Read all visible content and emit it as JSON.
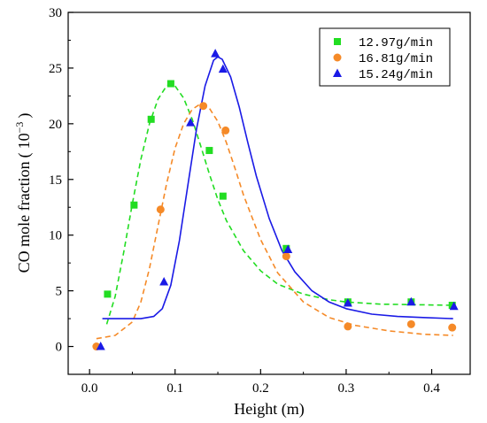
{
  "chart_data": {
    "type": "scatter",
    "xlabel": "Height (m)",
    "ylabel_main": "CO mole fraction",
    "ylabel_unit_base": "10",
    "ylabel_unit_exp": "−3",
    "xlim": [
      -0.025,
      0.445
    ],
    "ylim": [
      -2.5,
      30
    ],
    "xticks": [
      0.0,
      0.1,
      0.2,
      0.3,
      0.4
    ],
    "xtick_labels": [
      "0.0",
      "0.1",
      "0.2",
      "0.3",
      "0.4"
    ],
    "yticks": [
      0,
      5,
      10,
      15,
      20,
      25,
      30
    ],
    "ytick_labels": [
      "0",
      "5",
      "10",
      "15",
      "20",
      "25",
      "30"
    ],
    "legend_position": "top-right",
    "series": [
      {
        "name": "12.97g/min",
        "color": "#22dd22",
        "marker": "square",
        "line_style": "dashed",
        "points": [
          [
            0.021,
            4.7
          ],
          [
            0.052,
            12.7
          ],
          [
            0.072,
            20.4
          ],
          [
            0.095,
            23.6
          ],
          [
            0.14,
            17.6
          ],
          [
            0.156,
            13.5
          ],
          [
            0.23,
            8.8
          ],
          [
            0.302,
            4.0
          ],
          [
            0.376,
            4.0
          ],
          [
            0.424,
            3.7
          ]
        ],
        "fit": [
          [
            0.02,
            2.0
          ],
          [
            0.03,
            4.5
          ],
          [
            0.04,
            8.5
          ],
          [
            0.05,
            12.8
          ],
          [
            0.06,
            16.8
          ],
          [
            0.07,
            20.0
          ],
          [
            0.08,
            22.2
          ],
          [
            0.09,
            23.4
          ],
          [
            0.095,
            23.6
          ],
          [
            0.1,
            23.4
          ],
          [
            0.11,
            22.3
          ],
          [
            0.12,
            20.4
          ],
          [
            0.13,
            18.0
          ],
          [
            0.14,
            15.5
          ],
          [
            0.15,
            13.2
          ],
          [
            0.16,
            11.3
          ],
          [
            0.18,
            8.6
          ],
          [
            0.2,
            6.8
          ],
          [
            0.22,
            5.6
          ],
          [
            0.25,
            4.7
          ],
          [
            0.28,
            4.2
          ],
          [
            0.3,
            4.0
          ],
          [
            0.34,
            3.8
          ],
          [
            0.38,
            3.75
          ],
          [
            0.425,
            3.7
          ]
        ]
      },
      {
        "name": "16.81g/min",
        "color": "#f58a28",
        "marker": "circle",
        "line_style": "dashed",
        "points": [
          [
            0.008,
            0.0
          ],
          [
            0.083,
            12.3
          ],
          [
            0.133,
            21.6
          ],
          [
            0.159,
            19.4
          ],
          [
            0.23,
            8.1
          ],
          [
            0.302,
            1.8
          ],
          [
            0.376,
            2.0
          ],
          [
            0.424,
            1.7
          ]
        ],
        "fit": [
          [
            0.008,
            0.7
          ],
          [
            0.03,
            1.0
          ],
          [
            0.05,
            2.2
          ],
          [
            0.06,
            4.0
          ],
          [
            0.07,
            7.0
          ],
          [
            0.08,
            10.8
          ],
          [
            0.09,
            14.6
          ],
          [
            0.1,
            17.8
          ],
          [
            0.11,
            20.0
          ],
          [
            0.12,
            21.3
          ],
          [
            0.13,
            21.8
          ],
          [
            0.14,
            21.4
          ],
          [
            0.15,
            20.2
          ],
          [
            0.16,
            18.3
          ],
          [
            0.17,
            16.0
          ],
          [
            0.18,
            13.6
          ],
          [
            0.2,
            9.6
          ],
          [
            0.22,
            6.6
          ],
          [
            0.25,
            4.0
          ],
          [
            0.28,
            2.6
          ],
          [
            0.31,
            1.9
          ],
          [
            0.35,
            1.4
          ],
          [
            0.39,
            1.1
          ],
          [
            0.425,
            1.0
          ]
        ]
      },
      {
        "name": "15.24g/min",
        "color": "#1a1ae6",
        "marker": "triangle",
        "line_style": "solid",
        "points": [
          [
            0.013,
            0.0
          ],
          [
            0.087,
            5.8
          ],
          [
            0.118,
            20.1
          ],
          [
            0.147,
            26.3
          ],
          [
            0.156,
            24.9
          ],
          [
            0.232,
            8.7
          ],
          [
            0.302,
            3.9
          ],
          [
            0.376,
            4.0
          ],
          [
            0.426,
            3.6
          ]
        ],
        "fit": [
          [
            0.015,
            2.5
          ],
          [
            0.06,
            2.5
          ],
          [
            0.075,
            2.7
          ],
          [
            0.085,
            3.4
          ],
          [
            0.095,
            5.5
          ],
          [
            0.105,
            9.5
          ],
          [
            0.115,
            14.5
          ],
          [
            0.125,
            19.5
          ],
          [
            0.135,
            23.4
          ],
          [
            0.145,
            25.7
          ],
          [
            0.15,
            26.0
          ],
          [
            0.155,
            25.8
          ],
          [
            0.165,
            24.2
          ],
          [
            0.175,
            21.5
          ],
          [
            0.185,
            18.3
          ],
          [
            0.195,
            15.3
          ],
          [
            0.21,
            11.5
          ],
          [
            0.225,
            8.6
          ],
          [
            0.24,
            6.7
          ],
          [
            0.26,
            5.0
          ],
          [
            0.28,
            4.0
          ],
          [
            0.3,
            3.4
          ],
          [
            0.33,
            2.9
          ],
          [
            0.36,
            2.7
          ],
          [
            0.39,
            2.6
          ],
          [
            0.425,
            2.5
          ]
        ]
      }
    ]
  }
}
